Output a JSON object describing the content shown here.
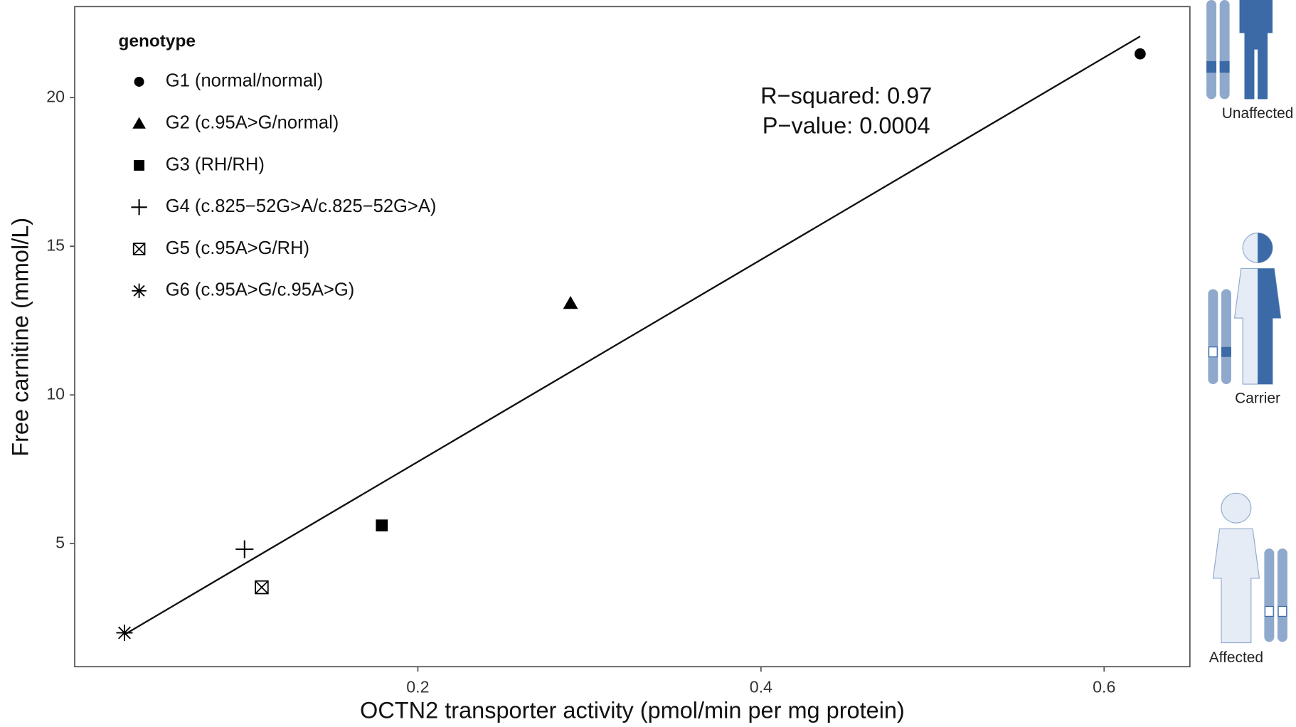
{
  "chart_data": {
    "type": "scatter",
    "x_label": "OCTN2 transporter activity (pmol/min per mg protein)",
    "y_label": "Free carnitine (mmol/L)",
    "xlim": [
      0,
      0.65
    ],
    "ylim": [
      0.86,
      23.06
    ],
    "xticks": [
      0.2,
      0.4,
      0.6
    ],
    "yticks": [
      5,
      10,
      15,
      20
    ],
    "legend_title": "genotype",
    "legend_position": "top-left",
    "annotations": [
      "R−squared: 0.97",
      "P−value: 0.0004"
    ],
    "fit_line": {
      "x": [
        0.029,
        0.621
      ],
      "y": [
        1.94,
        22.06
      ]
    },
    "series": [
      {
        "name": "G1 (normal/normal)",
        "marker": "circle",
        "color": "#000000",
        "x": [
          0.621
        ],
        "values": [
          21.47
        ]
      },
      {
        "name": "G2 (c.95A>G/normal)",
        "marker": "triangle",
        "color": "#000000",
        "x": [
          0.289
        ],
        "values": [
          13.08
        ]
      },
      {
        "name": "G3 (RH/RH)",
        "marker": "square",
        "color": "#000000",
        "x": [
          0.179
        ],
        "values": [
          5.61
        ]
      },
      {
        "name": "G4 (c.825−52G>A/c.825−52G>A)",
        "marker": "plus",
        "color": "#000000",
        "x": [
          0.099
        ],
        "values": [
          4.81
        ]
      },
      {
        "name": "G5 (c.95A>G/RH)",
        "marker": "boxx",
        "color": "#000000",
        "x": [
          0.109
        ],
        "values": [
          3.53
        ]
      },
      {
        "name": "G6 (c.95A>G/c.95A>G)",
        "marker": "asterisk",
        "color": "#000000",
        "x": [
          0.029
        ],
        "values": [
          2.0
        ]
      }
    ]
  },
  "icons": [
    "Unaffected",
    "Carrier",
    "Affected"
  ]
}
